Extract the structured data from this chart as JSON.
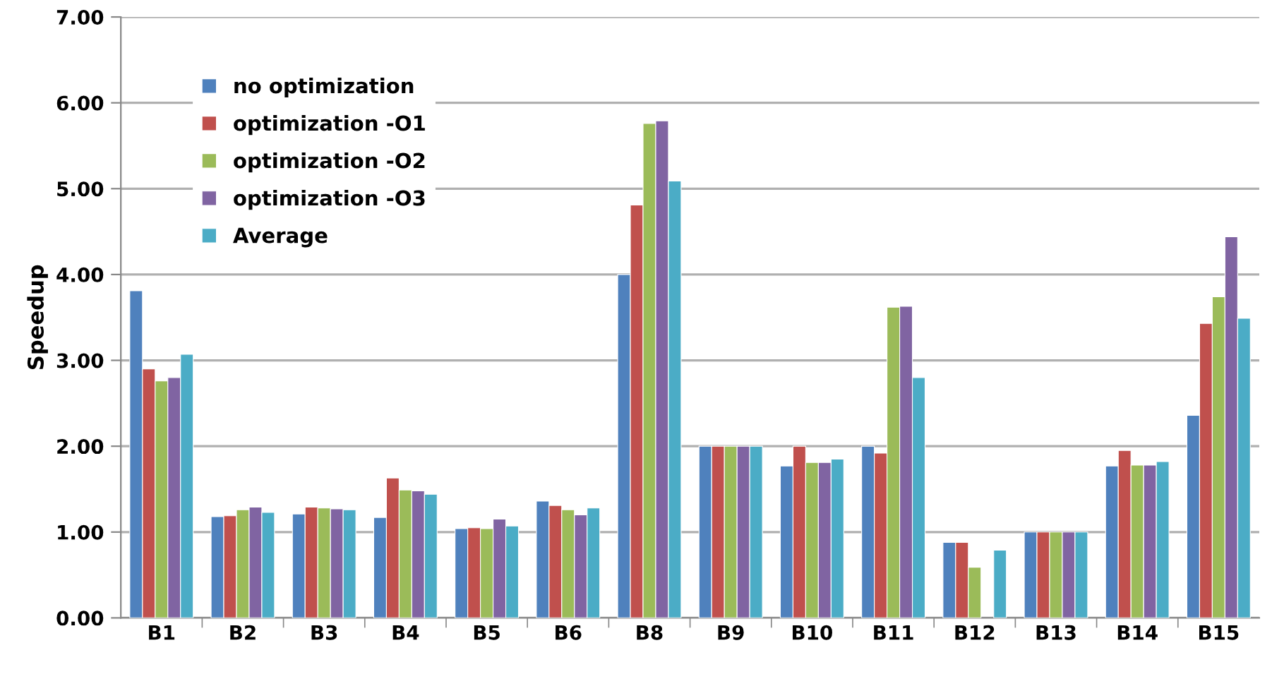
{
  "chart_data": {
    "type": "bar",
    "ylabel": "Speedup",
    "categories": [
      "B1",
      "B2",
      "B3",
      "B4",
      "B5",
      "B6",
      "B8",
      "B9",
      "B10",
      "B11",
      "B12",
      "B13",
      "B14",
      "B15"
    ],
    "series": [
      {
        "name": "no optimization",
        "color": "#4f81bd",
        "values": [
          3.81,
          1.18,
          1.21,
          1.17,
          1.04,
          1.36,
          4.0,
          2.0,
          1.77,
          2.0,
          0.88,
          1.0,
          1.77,
          2.36
        ]
      },
      {
        "name": "optimization -O1",
        "color": "#c0504d",
        "values": [
          2.9,
          1.19,
          1.29,
          1.63,
          1.05,
          1.31,
          4.81,
          2.0,
          2.0,
          1.92,
          0.88,
          1.0,
          1.95,
          3.43
        ]
      },
      {
        "name": "optimization -O2",
        "color": "#9bbb59",
        "values": [
          2.76,
          1.26,
          1.28,
          1.49,
          1.04,
          1.26,
          5.76,
          2.0,
          1.81,
          3.62,
          0.59,
          1.0,
          1.78,
          3.74
        ]
      },
      {
        "name": "optimization -O3",
        "color": "#8064a2",
        "values": [
          2.8,
          1.29,
          1.27,
          1.48,
          1.15,
          1.2,
          5.79,
          2.0,
          1.81,
          3.63,
          null,
          1.0,
          1.78,
          4.44
        ]
      },
      {
        "name": "Average",
        "color": "#4bacc6",
        "values": [
          3.07,
          1.23,
          1.26,
          1.44,
          1.07,
          1.28,
          5.09,
          2.0,
          1.85,
          2.8,
          0.79,
          1.0,
          1.82,
          3.49
        ]
      }
    ],
    "ylim": [
      0,
      7
    ],
    "yticks": [
      {
        "value": 0,
        "label": "0.00"
      },
      {
        "value": 1,
        "label": "1.00"
      },
      {
        "value": 2,
        "label": "2.00"
      },
      {
        "value": 3,
        "label": "3.00"
      },
      {
        "value": 4,
        "label": "4.00"
      },
      {
        "value": 5,
        "label": "5.00"
      },
      {
        "value": 6,
        "label": "6.00"
      },
      {
        "value": 7,
        "label": "7.00"
      }
    ],
    "grid": "y",
    "legend": "top left"
  }
}
